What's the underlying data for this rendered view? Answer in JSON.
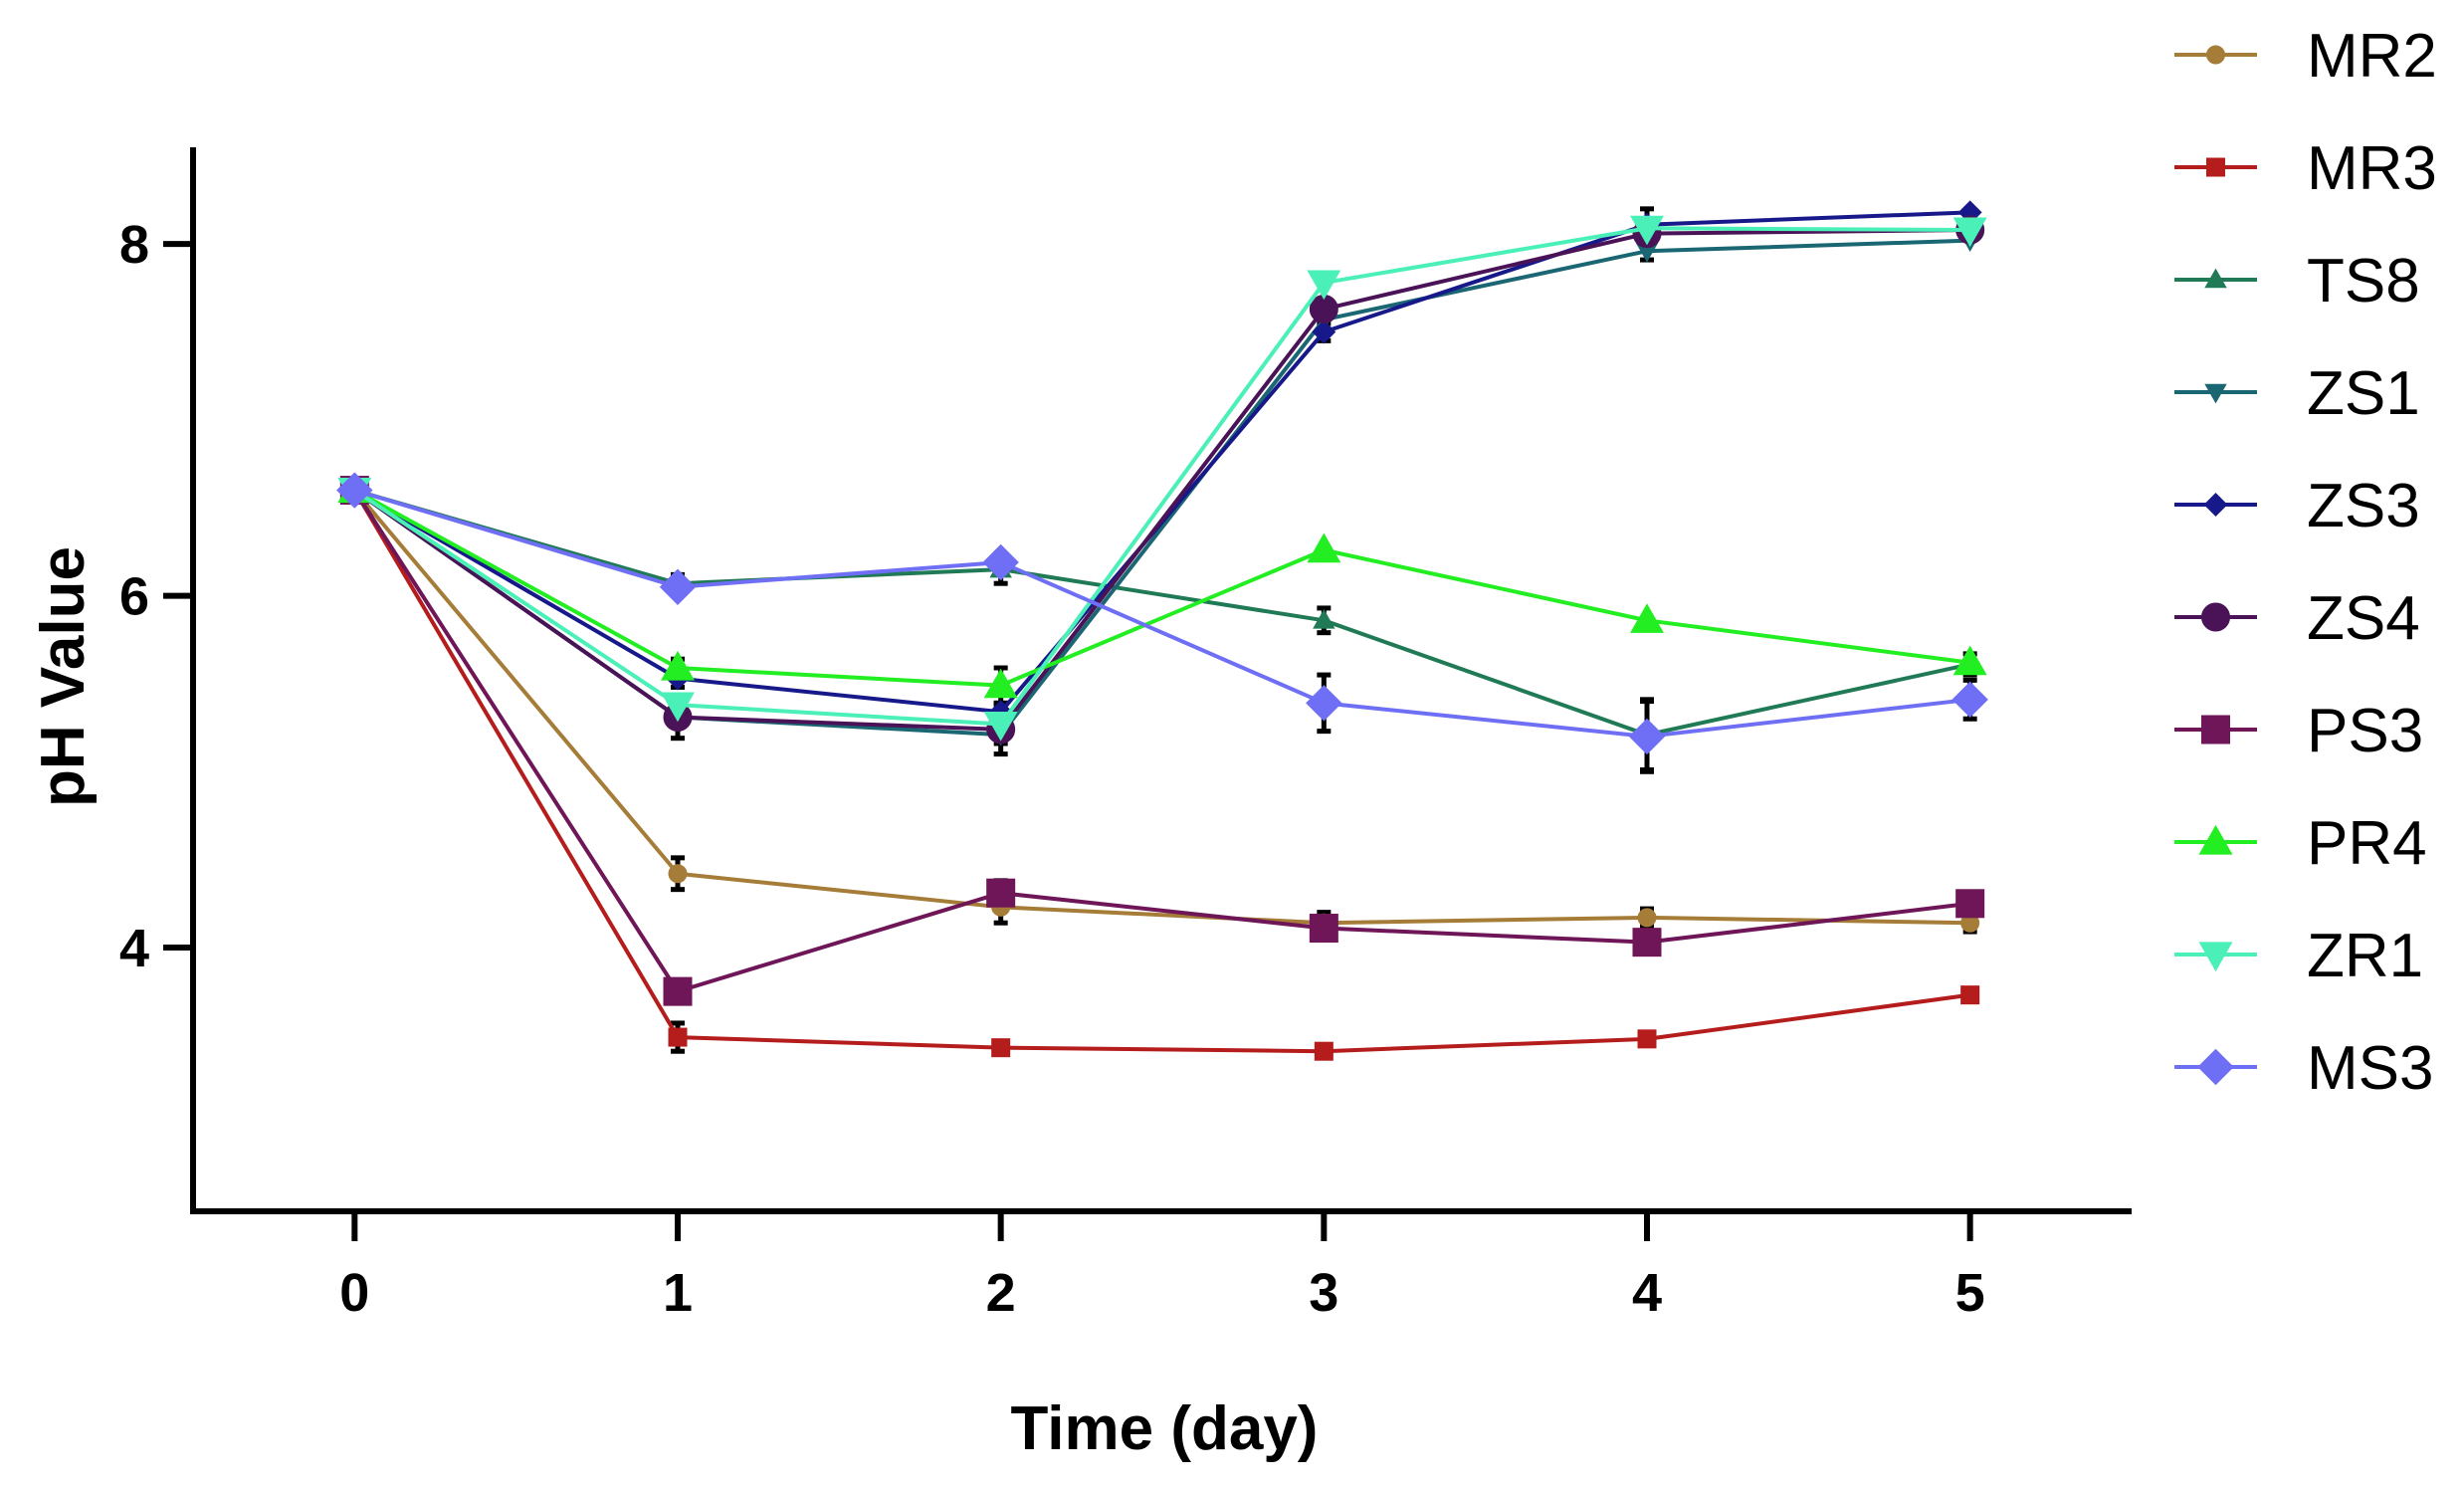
{
  "chart_data": {
    "type": "line",
    "title": "",
    "xlabel": "Time (day)",
    "ylabel": "pH Value",
    "x": [
      0,
      1,
      2,
      3,
      4,
      5
    ],
    "xticks": [
      0,
      1,
      2,
      3,
      4,
      5
    ],
    "xlim": [
      -0.5,
      5.5
    ],
    "yticks": [
      4,
      6,
      8
    ],
    "ylim": [
      2.5,
      8.55
    ],
    "legend_position": "right",
    "series": [
      {
        "name": "MR2",
        "color": "#A57C38",
        "marker": "circle",
        "values": [
          6.6,
          4.42,
          4.23,
          4.14,
          4.17,
          4.14
        ],
        "errors": [
          0,
          0.09,
          0.09,
          0.06,
          0.05,
          0.05
        ]
      },
      {
        "name": "MR3",
        "color": "#B51C1C",
        "marker": "square",
        "values": [
          6.6,
          3.49,
          3.43,
          3.41,
          3.48,
          3.73
        ],
        "errors": [
          0,
          0.08,
          0,
          0,
          0,
          0
        ]
      },
      {
        "name": "TS8",
        "color": "#1F7A55",
        "marker": "triangle-up",
        "values": [
          6.6,
          6.07,
          6.15,
          5.86,
          5.21,
          5.61
        ],
        "errors": [
          0,
          0.05,
          0.08,
          0.07,
          0.2,
          0.06
        ]
      },
      {
        "name": "ZS1",
        "color": "#1A6673",
        "marker": "triangle-down",
        "values": [
          6.6,
          5.31,
          5.21,
          7.57,
          7.96,
          8.02
        ],
        "errors": [
          0,
          0.05,
          0.05,
          0.05,
          0.05,
          0
        ]
      },
      {
        "name": "ZS3",
        "color": "#17198A",
        "marker": "diamond",
        "values": [
          6.6,
          5.53,
          5.34,
          7.5,
          8.11,
          8.18
        ],
        "errors": [
          0,
          0.05,
          0.05,
          0.05,
          0.09,
          0
        ]
      },
      {
        "name": "ZS4",
        "color": "#4A1357",
        "marker": "circle",
        "values": [
          6.6,
          5.31,
          5.24,
          7.63,
          8.06,
          8.08
        ],
        "errors": [
          0,
          0.12,
          0.14,
          0.05,
          0.05,
          0
        ]
      },
      {
        "name": "PS3",
        "color": "#6E1657",
        "marker": "square",
        "values": [
          6.6,
          3.75,
          4.31,
          4.11,
          4.03,
          4.25
        ],
        "errors": [
          0,
          0,
          0.07,
          0.06,
          0,
          0
        ]
      },
      {
        "name": "PR4",
        "color": "#22EE22",
        "marker": "triangle-up",
        "values": [
          6.6,
          5.59,
          5.49,
          6.26,
          5.86,
          5.62
        ],
        "errors": [
          0,
          0.05,
          0.1,
          0,
          0,
          0
        ]
      },
      {
        "name": "ZR1",
        "color": "#4AF0B8",
        "marker": "triangle-down",
        "values": [
          6.6,
          5.38,
          5.27,
          7.78,
          8.09,
          8.08
        ],
        "errors": [
          0,
          0.05,
          0.05,
          0,
          0,
          0
        ]
      },
      {
        "name": "MS3",
        "color": "#6F6FF5",
        "marker": "diamond",
        "values": [
          6.6,
          6.05,
          6.19,
          5.39,
          5.2,
          5.41
        ],
        "errors": [
          0,
          0,
          0.05,
          0.16,
          0.2,
          0.11
        ]
      }
    ]
  }
}
